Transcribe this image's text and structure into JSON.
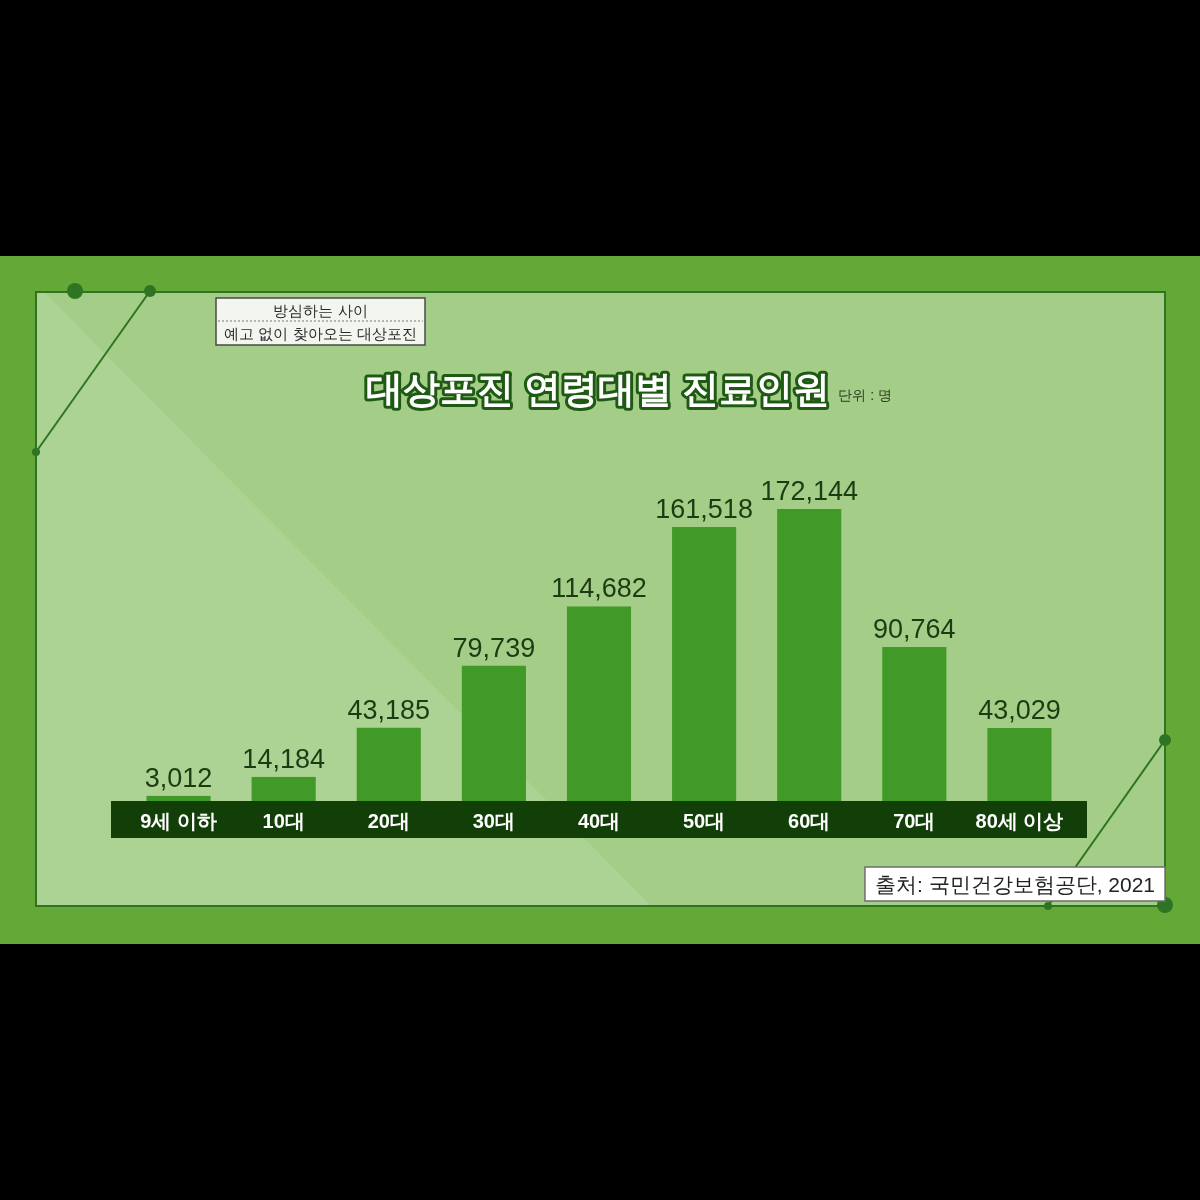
{
  "chart_data": {
    "type": "bar",
    "title": "대상포진 연령대별 진료인원",
    "subtitle": "방심하는 사이\n예고 없이 찾아오는 대상포진",
    "annotations": [
      "단위 : 명",
      "출처: 국민건강보험공단, 2021"
    ],
    "categories": [
      "9세 이하",
      "10대",
      "20대",
      "30대",
      "40대",
      "50대",
      "60대",
      "70대",
      "80세 이상"
    ],
    "values": [
      3012,
      14184,
      43185,
      79739,
      114682,
      161518,
      172144,
      90764,
      43029
    ],
    "value_labels": [
      "3,012",
      "14,184",
      "43,185",
      "79,739",
      "114,682",
      "161,518",
      "172,144",
      "90,764",
      "43,029"
    ],
    "color": "#419a27"
  }
}
